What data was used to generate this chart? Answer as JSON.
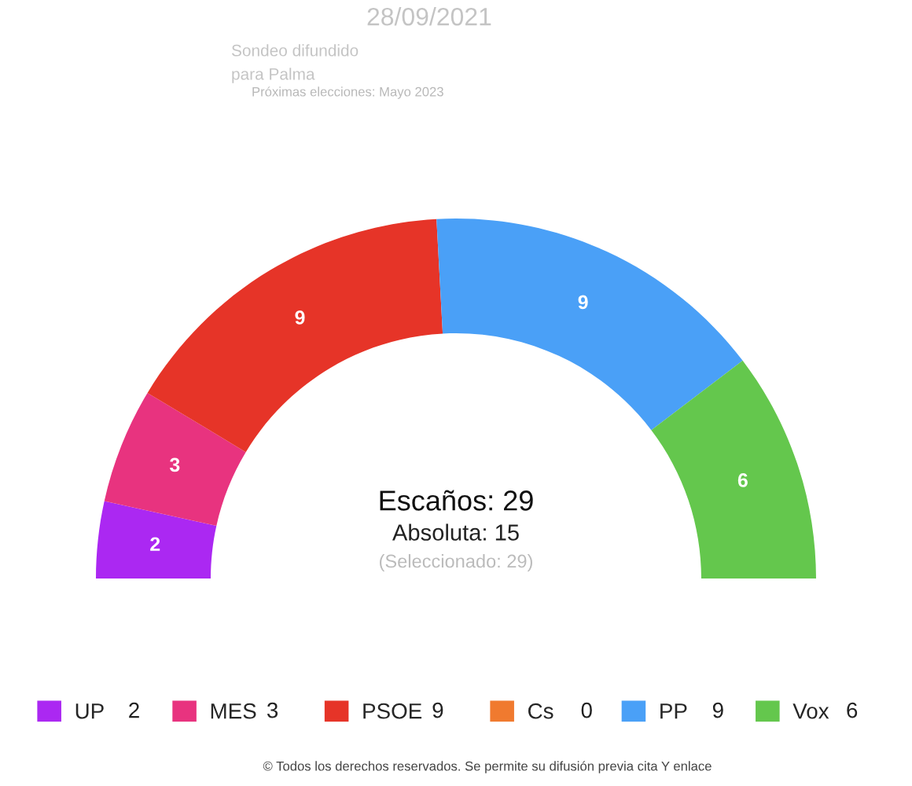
{
  "chart_data": {
    "type": "donut",
    "title": "28/09/2021",
    "subtitle": "Sondeo difundido",
    "categories": [
      "UP",
      "MES",
      "PSOE",
      "Cs",
      "PP",
      "Vox"
    ],
    "values": [
      2,
      3,
      9,
      0,
      9,
      6
    ],
    "value_labels": [
      "2",
      "3",
      "9",
      "0",
      "9",
      "6"
    ],
    "colors": [
      "#ab28f2",
      "#e8337f",
      "#e63428",
      "#f07a2f",
      "#4aa0f7",
      "#64c74d"
    ],
    "legend": "bottom",
    "annotations": [
      "para Palma",
      "Próximas elecciones: Mayo 2023",
      "Escaños: 29",
      "Absoluta: 15",
      "(Seleccionado: 29)",
      "© Todos los derechos reservados. Se permite su difusión previa cita Y enlace"
    ]
  }
}
